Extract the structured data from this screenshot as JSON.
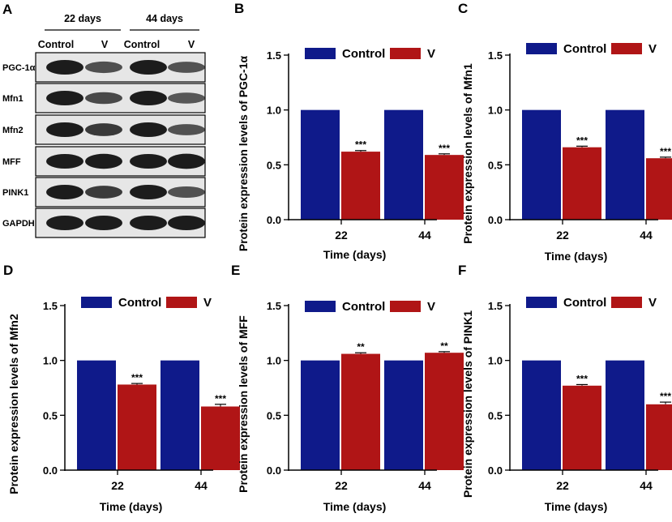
{
  "colors": {
    "control": "#0f1a8a",
    "treatment": "#b01516",
    "axis": "#000000",
    "band": "#1c1c1c"
  },
  "western_blot": {
    "panel_letter": "A",
    "groups": [
      {
        "label": "22 days",
        "lanes": [
          "Control",
          "V"
        ]
      },
      {
        "label": "44 days",
        "lanes": [
          "Control",
          "V"
        ]
      }
    ],
    "proteins": [
      "PGC-1α",
      "Mfn1",
      "Mfn2",
      "MFF",
      "PINK1",
      "GAPDH"
    ],
    "band_intensity": [
      [
        1.0,
        0.62,
        1.0,
        0.58
      ],
      [
        1.0,
        0.66,
        1.0,
        0.56
      ],
      [
        1.0,
        0.78,
        1.0,
        0.58
      ],
      [
        1.0,
        1.05,
        1.0,
        1.07
      ],
      [
        1.0,
        0.77,
        1.0,
        0.6
      ],
      [
        1.0,
        1.0,
        1.0,
        1.0
      ]
    ]
  },
  "chart_data": [
    {
      "panel": "B",
      "type": "bar",
      "title": "",
      "xlabel": "Time (days)",
      "ylabel": "Protein expression levels of PGC-1α",
      "categories": [
        "22",
        "44"
      ],
      "ylim": [
        0,
        1.5
      ],
      "yticks": [
        "0.0",
        "0.5",
        "1.0",
        "1.5"
      ],
      "series": [
        {
          "name": "Control",
          "values": [
            1.0,
            1.0
          ],
          "errors": [
            0,
            0
          ]
        },
        {
          "name": "V",
          "values": [
            0.62,
            0.59
          ],
          "errors": [
            0.01,
            0.01
          ]
        }
      ],
      "annotations": [
        "***",
        "***"
      ]
    },
    {
      "panel": "C",
      "type": "bar",
      "title": "",
      "xlabel": "Time (days)",
      "ylabel": "Protein expression levels of Mfn1",
      "categories": [
        "22",
        "44"
      ],
      "ylim": [
        0,
        1.5
      ],
      "yticks": [
        "0.0",
        "0.5",
        "1.0",
        "1.5"
      ],
      "series": [
        {
          "name": "Control",
          "values": [
            1.0,
            1.0
          ],
          "errors": [
            0,
            0
          ]
        },
        {
          "name": "V",
          "values": [
            0.66,
            0.56
          ],
          "errors": [
            0.01,
            0.01
          ]
        }
      ],
      "annotations": [
        "***",
        "***"
      ]
    },
    {
      "panel": "D",
      "type": "bar",
      "title": "",
      "xlabel": "Time (days)",
      "ylabel": "Protein expression levels of Mfn2",
      "categories": [
        "22",
        "44"
      ],
      "ylim": [
        0,
        1.5
      ],
      "yticks": [
        "0.0",
        "0.5",
        "1.0",
        "1.5"
      ],
      "series": [
        {
          "name": "Control",
          "values": [
            1.0,
            1.0
          ],
          "errors": [
            0,
            0
          ]
        },
        {
          "name": "V",
          "values": [
            0.78,
            0.58
          ],
          "errors": [
            0.01,
            0.02
          ]
        }
      ],
      "annotations": [
        "***",
        "***"
      ]
    },
    {
      "panel": "E",
      "type": "bar",
      "title": "",
      "xlabel": "Time (days)",
      "ylabel": "Protein expression levels of MFF",
      "categories": [
        "22",
        "44"
      ],
      "ylim": [
        0,
        1.5
      ],
      "yticks": [
        "0.0",
        "0.5",
        "1.0",
        "1.5"
      ],
      "series": [
        {
          "name": "Control",
          "values": [
            1.0,
            1.0
          ],
          "errors": [
            0,
            0
          ]
        },
        {
          "name": "V",
          "values": [
            1.06,
            1.07
          ],
          "errors": [
            0.01,
            0.01
          ]
        }
      ],
      "annotations": [
        "**",
        "**"
      ]
    },
    {
      "panel": "F",
      "type": "bar",
      "title": "",
      "xlabel": "Time (days)",
      "ylabel": "Protein expression levels of PINK1",
      "categories": [
        "22",
        "44"
      ],
      "ylim": [
        0,
        1.5
      ],
      "yticks": [
        "0.0",
        "0.5",
        "1.0",
        "1.5"
      ],
      "series": [
        {
          "name": "Control",
          "values": [
            1.0,
            1.0
          ],
          "errors": [
            0,
            0
          ]
        },
        {
          "name": "V",
          "values": [
            0.77,
            0.6
          ],
          "errors": [
            0.01,
            0.02
          ]
        }
      ],
      "annotations": [
        "***",
        "***"
      ]
    }
  ]
}
